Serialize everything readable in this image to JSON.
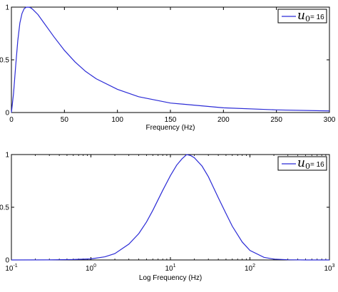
{
  "colors": {
    "series": "#2b2bd6",
    "axis": "#000000",
    "background": "#ffffff"
  },
  "chart_data": [
    {
      "type": "line",
      "title": "",
      "xlabel": "Frequency (Hz)",
      "ylabel": "",
      "xlim": [
        0,
        300
      ],
      "ylim": [
        0,
        1
      ],
      "xscale": "linear",
      "grid": false,
      "legend_position": "top-right",
      "x_ticks": [
        "0",
        "50",
        "100",
        "150",
        "200",
        "250",
        "300"
      ],
      "x_tick_values": [
        0,
        50,
        100,
        150,
        200,
        250,
        300
      ],
      "y_ticks": [
        "0",
        "0.5",
        "1"
      ],
      "y_tick_values": [
        0,
        0.5,
        1
      ],
      "series": [
        {
          "name_symbol": "u",
          "name_subscript": "0",
          "name_value": "= 16",
          "color": "#2b2bd6",
          "x": [
            0,
            2,
            4,
            6,
            8,
            10,
            12,
            14,
            16,
            18,
            20,
            25,
            30,
            35,
            40,
            50,
            60,
            70,
            80,
            100,
            120,
            150,
            200,
            250,
            300
          ],
          "y": [
            0,
            0.18,
            0.44,
            0.68,
            0.85,
            0.94,
            0.985,
            0.999,
            1.0,
            0.995,
            0.98,
            0.93,
            0.86,
            0.79,
            0.72,
            0.59,
            0.48,
            0.39,
            0.32,
            0.22,
            0.15,
            0.09,
            0.045,
            0.025,
            0.015
          ]
        }
      ]
    },
    {
      "type": "line",
      "title": "",
      "xlabel": "Log Frequency (Hz)",
      "ylabel": "",
      "xlim": [
        0.1,
        1000
      ],
      "ylim": [
        0,
        1
      ],
      "xscale": "log",
      "grid": false,
      "legend_position": "top-right",
      "x_ticks": [
        {
          "base": "10",
          "exp": "-1"
        },
        {
          "base": "10",
          "exp": "0"
        },
        {
          "base": "10",
          "exp": "1"
        },
        {
          "base": "10",
          "exp": "2"
        },
        {
          "base": "10",
          "exp": "3"
        }
      ],
      "x_tick_values": [
        0.1,
        1,
        10,
        100,
        1000
      ],
      "y_ticks": [
        "0",
        "0.5",
        "1"
      ],
      "y_tick_values": [
        0,
        0.5,
        1
      ],
      "series": [
        {
          "name_symbol": "u",
          "name_subscript": "0",
          "name_value": "= 16",
          "color": "#2b2bd6",
          "x": [
            0.1,
            0.3,
            0.6,
            1,
            1.5,
            2,
            3,
            4,
            5,
            6,
            8,
            10,
            12,
            14,
            16,
            18,
            20,
            25,
            30,
            40,
            50,
            60,
            80,
            100,
            150,
            200,
            300,
            500,
            700,
            1000
          ],
          "y": [
            0.0,
            0.001,
            0.004,
            0.01,
            0.03,
            0.06,
            0.15,
            0.25,
            0.36,
            0.47,
            0.66,
            0.8,
            0.9,
            0.96,
            1.0,
            0.99,
            0.97,
            0.89,
            0.79,
            0.59,
            0.44,
            0.32,
            0.17,
            0.09,
            0.025,
            0.008,
            0.002,
            0.0,
            0.0,
            0.0
          ]
        }
      ]
    }
  ]
}
